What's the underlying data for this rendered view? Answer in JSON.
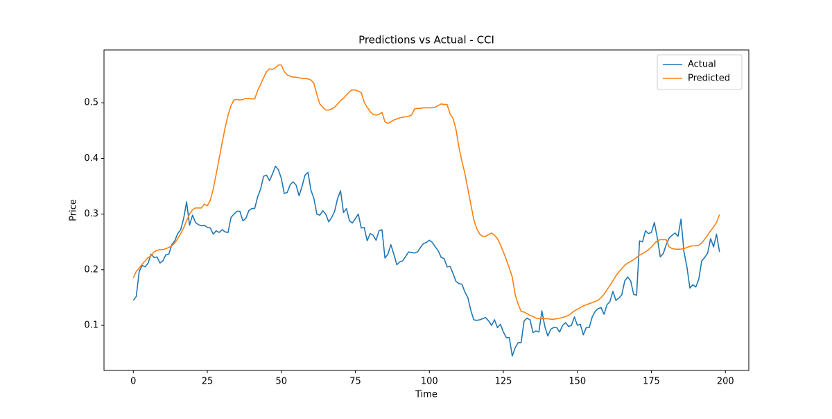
{
  "chart_data": {
    "type": "line",
    "title": "Predictions vs Actual - CCI",
    "xlabel": "Time",
    "ylabel": "Price",
    "x": [
      0,
      1,
      2,
      3,
      4,
      5,
      6,
      7,
      8,
      9,
      10,
      11,
      12,
      13,
      14,
      15,
      16,
      17,
      18,
      19,
      20,
      21,
      22,
      23,
      24,
      25,
      26,
      27,
      28,
      29,
      30,
      31,
      32,
      33,
      34,
      35,
      36,
      37,
      38,
      39,
      40,
      41,
      42,
      43,
      44,
      45,
      46,
      47,
      48,
      49,
      50,
      51,
      52,
      53,
      54,
      55,
      56,
      57,
      58,
      59,
      60,
      61,
      62,
      63,
      64,
      65,
      66,
      67,
      68,
      69,
      70,
      71,
      72,
      73,
      74,
      75,
      76,
      77,
      78,
      79,
      80,
      81,
      82,
      83,
      84,
      85,
      86,
      87,
      88,
      89,
      90,
      91,
      92,
      93,
      94,
      95,
      96,
      97,
      98,
      99,
      100,
      101,
      102,
      103,
      104,
      105,
      106,
      107,
      108,
      109,
      110,
      111,
      112,
      113,
      114,
      115,
      116,
      117,
      118,
      119,
      120,
      121,
      122,
      123,
      124,
      125,
      126,
      127,
      128,
      129,
      130,
      131,
      132,
      133,
      134,
      135,
      136,
      137,
      138,
      139,
      140,
      141,
      142,
      143,
      144,
      145,
      146,
      147,
      148,
      149,
      150,
      151,
      152,
      153,
      154,
      155,
      156,
      157,
      158,
      159,
      160,
      161,
      162,
      163,
      164,
      165,
      166,
      167,
      168,
      169,
      170,
      171,
      172,
      173,
      174,
      175,
      176,
      177,
      178,
      179,
      180,
      181,
      182,
      183,
      184,
      185,
      186,
      187,
      188,
      189,
      190,
      191,
      192,
      193,
      194,
      195,
      196,
      197,
      198
    ],
    "series": [
      {
        "name": "Actual",
        "color": "#1f77b4",
        "values": [
          0.145,
          0.152,
          0.197,
          0.208,
          0.205,
          0.212,
          0.228,
          0.222,
          0.223,
          0.212,
          0.216,
          0.227,
          0.228,
          0.245,
          0.252,
          0.265,
          0.272,
          0.292,
          0.322,
          0.28,
          0.298,
          0.285,
          0.281,
          0.279,
          0.28,
          0.276,
          0.275,
          0.264,
          0.27,
          0.267,
          0.272,
          0.268,
          0.267,
          0.294,
          0.3,
          0.305,
          0.305,
          0.288,
          0.292,
          0.306,
          0.31,
          0.31,
          0.331,
          0.345,
          0.368,
          0.37,
          0.36,
          0.372,
          0.386,
          0.38,
          0.364,
          0.337,
          0.339,
          0.353,
          0.358,
          0.352,
          0.333,
          0.35,
          0.37,
          0.375,
          0.343,
          0.328,
          0.3,
          0.298,
          0.306,
          0.3,
          0.286,
          0.294,
          0.305,
          0.328,
          0.342,
          0.303,
          0.31,
          0.288,
          0.284,
          0.292,
          0.3,
          0.275,
          0.276,
          0.252,
          0.265,
          0.262,
          0.253,
          0.27,
          0.272,
          0.221,
          0.228,
          0.245,
          0.228,
          0.209,
          0.214,
          0.216,
          0.224,
          0.232,
          0.231,
          0.23,
          0.232,
          0.24,
          0.247,
          0.249,
          0.253,
          0.249,
          0.241,
          0.234,
          0.222,
          0.22,
          0.205,
          0.206,
          0.193,
          0.179,
          0.175,
          0.174,
          0.16,
          0.15,
          0.127,
          0.11,
          0.109,
          0.11,
          0.112,
          0.114,
          0.108,
          0.1,
          0.11,
          0.096,
          0.102,
          0.088,
          0.078,
          0.078,
          0.045,
          0.06,
          0.069,
          0.069,
          0.108,
          0.113,
          0.11,
          0.087,
          0.09,
          0.088,
          0.126,
          0.098,
          0.081,
          0.093,
          0.096,
          0.096,
          0.088,
          0.1,
          0.105,
          0.098,
          0.1,
          0.115,
          0.1,
          0.102,
          0.083,
          0.096,
          0.096,
          0.115,
          0.125,
          0.13,
          0.132,
          0.12,
          0.137,
          0.143,
          0.161,
          0.145,
          0.149,
          0.155,
          0.18,
          0.187,
          0.18,
          0.156,
          0.154,
          0.252,
          0.25,
          0.27,
          0.265,
          0.267,
          0.285,
          0.257,
          0.223,
          0.229,
          0.245,
          0.257,
          0.262,
          0.266,
          0.26,
          0.291,
          0.232,
          0.205,
          0.167,
          0.173,
          0.169,
          0.183,
          0.216,
          0.222,
          0.23,
          0.256,
          0.241,
          0.264,
          0.232
        ]
      },
      {
        "name": "Predicted",
        "color": "#ff7f0e",
        "values": [
          0.185,
          0.197,
          0.203,
          0.21,
          0.216,
          0.222,
          0.225,
          0.232,
          0.235,
          0.236,
          0.236,
          0.238,
          0.24,
          0.243,
          0.248,
          0.256,
          0.265,
          0.275,
          0.288,
          0.3,
          0.308,
          0.311,
          0.311,
          0.311,
          0.318,
          0.315,
          0.325,
          0.345,
          0.372,
          0.4,
          0.428,
          0.455,
          0.478,
          0.495,
          0.505,
          0.506,
          0.505,
          0.506,
          0.508,
          0.508,
          0.507,
          0.507,
          0.522,
          0.533,
          0.545,
          0.556,
          0.561,
          0.56,
          0.563,
          0.568,
          0.568,
          0.556,
          0.55,
          0.548,
          0.546,
          0.546,
          0.545,
          0.544,
          0.544,
          0.543,
          0.541,
          0.535,
          0.515,
          0.498,
          0.492,
          0.487,
          0.487,
          0.489,
          0.492,
          0.498,
          0.504,
          0.508,
          0.514,
          0.52,
          0.523,
          0.523,
          0.521,
          0.518,
          0.501,
          0.492,
          0.484,
          0.479,
          0.478,
          0.479,
          0.483,
          0.466,
          0.463,
          0.466,
          0.469,
          0.471,
          0.473,
          0.474,
          0.475,
          0.476,
          0.478,
          0.489,
          0.49,
          0.49,
          0.491,
          0.491,
          0.491,
          0.491,
          0.492,
          0.495,
          0.498,
          0.497,
          0.497,
          0.48,
          0.472,
          0.452,
          0.42,
          0.395,
          0.373,
          0.345,
          0.318,
          0.29,
          0.274,
          0.264,
          0.26,
          0.26,
          0.263,
          0.266,
          0.262,
          0.256,
          0.245,
          0.232,
          0.218,
          0.203,
          0.187,
          0.155,
          0.138,
          0.125,
          0.124,
          0.121,
          0.118,
          0.116,
          0.113,
          0.112,
          0.112,
          0.112,
          0.112,
          0.111,
          0.111,
          0.112,
          0.113,
          0.114,
          0.116,
          0.118,
          0.122,
          0.126,
          0.129,
          0.132,
          0.135,
          0.137,
          0.139,
          0.141,
          0.143,
          0.145,
          0.15,
          0.156,
          0.164,
          0.172,
          0.18,
          0.189,
          0.196,
          0.202,
          0.208,
          0.212,
          0.215,
          0.218,
          0.222,
          0.226,
          0.229,
          0.232,
          0.236,
          0.241,
          0.247,
          0.252,
          0.254,
          0.254,
          0.254,
          0.241,
          0.238,
          0.237,
          0.237,
          0.237,
          0.238,
          0.24,
          0.242,
          0.243,
          0.243,
          0.244,
          0.248,
          0.255,
          0.262,
          0.27,
          0.277,
          0.285,
          0.299
        ]
      }
    ],
    "xlim": [
      -9.9,
      207.9
    ],
    "ylim": [
      0.019,
      0.595
    ],
    "xticks": [
      0,
      25,
      50,
      75,
      100,
      125,
      150,
      175,
      200
    ],
    "yticks": [
      0.1,
      0.2,
      0.3,
      0.4,
      0.5
    ],
    "legend": "upper right"
  }
}
